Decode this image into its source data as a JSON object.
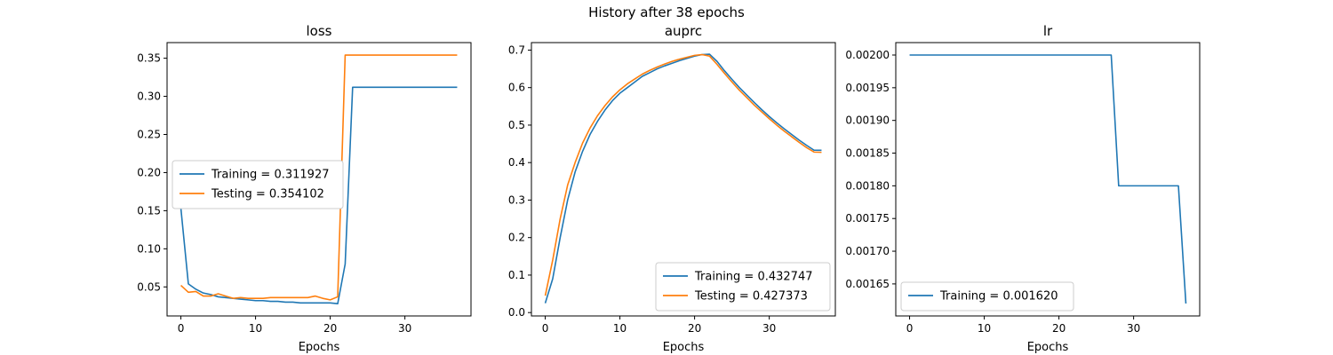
{
  "figure": {
    "suptitle": "History after 38 epochs"
  },
  "colors": {
    "training": "#1f77b4",
    "testing": "#ff7f0e"
  },
  "chart_data": [
    {
      "type": "line",
      "title": "loss",
      "xlabel": "Epochs",
      "ylabel": "",
      "xlim": [
        -1.85,
        38.85
      ],
      "ylim": [
        0.0119,
        0.3705
      ],
      "xticks": [
        0,
        10,
        20,
        30
      ],
      "xtick_labels": [
        "0",
        "10",
        "20",
        "30"
      ],
      "yticks": [
        0.05,
        0.1,
        0.15,
        0.2,
        0.25,
        0.3,
        0.35
      ],
      "ytick_labels": [
        "0.05",
        "0.10",
        "0.15",
        "0.20",
        "0.25",
        "0.30",
        "0.35"
      ],
      "legend_position": "center-left",
      "grid": false,
      "x": [
        0,
        1,
        2,
        3,
        4,
        5,
        6,
        7,
        8,
        9,
        10,
        11,
        12,
        13,
        14,
        15,
        16,
        17,
        18,
        19,
        20,
        21,
        22,
        23,
        24,
        25,
        26,
        27,
        28,
        29,
        30,
        31,
        32,
        33,
        34,
        35,
        36,
        37
      ],
      "series": [
        {
          "name": "Training = 0.311927",
          "color_key": "training",
          "values": [
            0.153,
            0.054,
            0.047,
            0.042,
            0.04,
            0.037,
            0.036,
            0.035,
            0.034,
            0.033,
            0.032,
            0.032,
            0.031,
            0.031,
            0.03,
            0.03,
            0.029,
            0.029,
            0.029,
            0.029,
            0.029,
            0.028,
            0.08,
            0.311927,
            0.311927,
            0.311927,
            0.311927,
            0.311927,
            0.311927,
            0.311927,
            0.311927,
            0.311927,
            0.311927,
            0.311927,
            0.311927,
            0.311927,
            0.311927,
            0.311927
          ]
        },
        {
          "name": "Testing = 0.354102",
          "color_key": "testing",
          "values": [
            0.052,
            0.043,
            0.044,
            0.038,
            0.038,
            0.041,
            0.038,
            0.035,
            0.036,
            0.035,
            0.035,
            0.035,
            0.036,
            0.036,
            0.036,
            0.036,
            0.036,
            0.036,
            0.038,
            0.035,
            0.033,
            0.037,
            0.354102,
            0.354102,
            0.354102,
            0.354102,
            0.354102,
            0.354102,
            0.354102,
            0.354102,
            0.354102,
            0.354102,
            0.354102,
            0.354102,
            0.354102,
            0.354102,
            0.354102,
            0.354102
          ]
        }
      ]
    },
    {
      "type": "line",
      "title": "auprc",
      "xlabel": "Epochs",
      "ylabel": "",
      "xlim": [
        -1.85,
        38.85
      ],
      "ylim": [
        -0.009,
        0.72
      ],
      "xticks": [
        0,
        10,
        20,
        30
      ],
      "xtick_labels": [
        "0",
        "10",
        "20",
        "30"
      ],
      "yticks": [
        0.0,
        0.1,
        0.2,
        0.3,
        0.4,
        0.5,
        0.6,
        0.7
      ],
      "ytick_labels": [
        "0.0",
        "0.1",
        "0.2",
        "0.3",
        "0.4",
        "0.5",
        "0.6",
        "0.7"
      ],
      "legend_position": "lower-right",
      "grid": false,
      "x": [
        0,
        1,
        2,
        3,
        4,
        5,
        6,
        7,
        8,
        9,
        10,
        11,
        12,
        13,
        14,
        15,
        16,
        17,
        18,
        19,
        20,
        21,
        22,
        23,
        24,
        25,
        26,
        27,
        28,
        29,
        30,
        31,
        32,
        33,
        34,
        35,
        36,
        37
      ],
      "series": [
        {
          "name": "Training = 0.432747",
          "color_key": "training",
          "values": [
            0.025,
            0.09,
            0.2,
            0.3,
            0.375,
            0.43,
            0.475,
            0.51,
            0.54,
            0.565,
            0.585,
            0.6,
            0.615,
            0.63,
            0.64,
            0.65,
            0.658,
            0.665,
            0.672,
            0.678,
            0.684,
            0.688,
            0.689,
            0.67,
            0.645,
            0.622,
            0.6,
            0.58,
            0.56,
            0.541,
            0.523,
            0.506,
            0.49,
            0.475,
            0.46,
            0.446,
            0.433,
            0.432747
          ]
        },
        {
          "name": "Testing = 0.427373",
          "color_key": "testing",
          "values": [
            0.045,
            0.14,
            0.25,
            0.34,
            0.4,
            0.452,
            0.492,
            0.525,
            0.552,
            0.575,
            0.594,
            0.61,
            0.623,
            0.636,
            0.646,
            0.655,
            0.663,
            0.67,
            0.676,
            0.681,
            0.686,
            0.688,
            0.684,
            0.662,
            0.638,
            0.615,
            0.593,
            0.573,
            0.553,
            0.535,
            0.517,
            0.5,
            0.484,
            0.469,
            0.454,
            0.44,
            0.428,
            0.427373
          ]
        }
      ]
    },
    {
      "type": "line",
      "title": "lr",
      "xlabel": "Epochs",
      "ylabel": "",
      "xlim": [
        -1.85,
        38.85
      ],
      "ylim": [
        0.001601,
        0.002019
      ],
      "xticks": [
        0,
        10,
        20,
        30
      ],
      "xtick_labels": [
        "0",
        "10",
        "20",
        "30"
      ],
      "yticks": [
        0.00165,
        0.0017,
        0.00175,
        0.0018,
        0.00185,
        0.0019,
        0.00195,
        0.002
      ],
      "ytick_labels": [
        "0.00165",
        "0.00170",
        "0.00175",
        "0.00180",
        "0.00185",
        "0.00190",
        "0.00195",
        "0.00200"
      ],
      "legend_position": "lower-left",
      "grid": false,
      "x": [
        0,
        1,
        2,
        3,
        4,
        5,
        6,
        7,
        8,
        9,
        10,
        11,
        12,
        13,
        14,
        15,
        16,
        17,
        18,
        19,
        20,
        21,
        22,
        23,
        24,
        25,
        26,
        27,
        28,
        29,
        30,
        31,
        32,
        33,
        34,
        35,
        36,
        37
      ],
      "series": [
        {
          "name": "Training = 0.001620",
          "color_key": "training",
          "values": [
            0.002,
            0.002,
            0.002,
            0.002,
            0.002,
            0.002,
            0.002,
            0.002,
            0.002,
            0.002,
            0.002,
            0.002,
            0.002,
            0.002,
            0.002,
            0.002,
            0.002,
            0.002,
            0.002,
            0.002,
            0.002,
            0.002,
            0.002,
            0.002,
            0.002,
            0.002,
            0.002,
            0.002,
            0.0018,
            0.0018,
            0.0018,
            0.0018,
            0.0018,
            0.0018,
            0.0018,
            0.0018,
            0.0018,
            0.00162
          ]
        }
      ]
    }
  ]
}
